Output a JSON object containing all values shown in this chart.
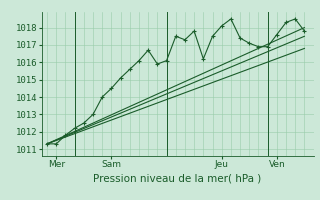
{
  "background_color": "#cce8d8",
  "grid_color": "#99ccaa",
  "line_color": "#1a5c2a",
  "axis_color": "#1a5c2a",
  "ylabel_ticks": [
    1011,
    1012,
    1013,
    1014,
    1015,
    1016,
    1017,
    1018
  ],
  "ylim": [
    1010.6,
    1018.9
  ],
  "xlim": [
    -0.3,
    14.5
  ],
  "xlabel": "Pression niveau de la mer( hPa )",
  "xlabel_fontsize": 7.5,
  "tick_fontsize": 6.5,
  "day_labels": [
    "Mer",
    "Sam",
    "Jeu",
    "Ven"
  ],
  "day_positions": [
    0.5,
    3.5,
    9.5,
    12.5
  ],
  "day_vlines": [
    1.5,
    6.5,
    12.0
  ],
  "series1_x": [
    0,
    0.5,
    1,
    1.5,
    2,
    2.5,
    3,
    3.5,
    4,
    4.5,
    5,
    5.5,
    6,
    6.5,
    7,
    7.5,
    8,
    8.5,
    9,
    9.5,
    10,
    10.5,
    11,
    11.5,
    12,
    12.5,
    13,
    13.5,
    14
  ],
  "series1_y": [
    1011.3,
    1011.3,
    1011.8,
    1012.2,
    1012.5,
    1013.0,
    1014.0,
    1014.5,
    1015.1,
    1015.6,
    1016.1,
    1016.7,
    1015.9,
    1016.1,
    1017.5,
    1017.3,
    1017.8,
    1016.2,
    1017.5,
    1018.1,
    1018.5,
    1017.4,
    1017.1,
    1016.9,
    1016.9,
    1017.6,
    1018.3,
    1018.5,
    1017.8
  ],
  "series2_x": [
    0,
    14
  ],
  "series2_y": [
    1011.3,
    1017.5
  ],
  "series3_x": [
    0,
    14
  ],
  "series3_y": [
    1011.3,
    1016.8
  ],
  "series4_x": [
    0,
    14
  ],
  "series4_y": [
    1011.3,
    1018.0
  ]
}
